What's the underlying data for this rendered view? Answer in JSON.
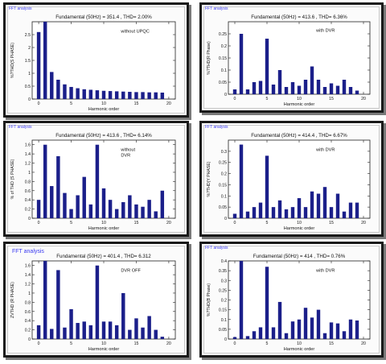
{
  "colors": {
    "bar": "#1b1f8a",
    "axis": "#222222",
    "window_title": "#3a3af0"
  },
  "window_title": "FFT analysis",
  "xlabel": "Harmonic order",
  "chart_data": [
    {
      "type": "bar",
      "window_title": "FFT analysis",
      "title": "Fundamental (50Hz) = 351.4 , THD= 2.00%",
      "annotation": "without UPQC",
      "ylabel": "%?THD(S PHASE)",
      "xlabel": "Harmonic order",
      "ylim": [
        0,
        3
      ],
      "yticks": [
        0,
        0.5,
        1,
        1.5,
        2,
        2.5
      ],
      "xlim": [
        -1,
        21
      ],
      "xticks": [
        0,
        5,
        10,
        15,
        20
      ],
      "x": [
        0,
        1,
        2,
        3,
        4,
        5,
        6,
        7,
        8,
        9,
        10,
        11,
        12,
        13,
        14,
        15,
        16,
        17,
        18,
        19
      ],
      "values": [
        2.6,
        3.0,
        1.05,
        0.75,
        0.57,
        0.47,
        0.42,
        0.38,
        0.36,
        0.34,
        0.32,
        0.31,
        0.3,
        0.29,
        0.28,
        0.27,
        0.27,
        0.26,
        0.26,
        0.25
      ]
    },
    {
      "type": "bar",
      "window_title": "FFT analysis",
      "title": "Fundamental (50Hz) = 413.6 , THD= 6.36%",
      "annotation": "with DVR",
      "ylabel": "%?THD(R Phase)",
      "xlabel": "Harmonic order",
      "ylim": [
        0,
        0.3
      ],
      "yticks": [
        0,
        0.05,
        0.1,
        0.15,
        0.2,
        0.25
      ],
      "xlim": [
        -1,
        21
      ],
      "xticks": [
        0,
        5,
        10,
        15,
        20
      ],
      "x": [
        0,
        1,
        2,
        3,
        4,
        5,
        6,
        7,
        8,
        9,
        10,
        11,
        12,
        13,
        14,
        15,
        16,
        17,
        18,
        19
      ],
      "values": [
        0.02,
        0.25,
        0.02,
        0.05,
        0.055,
        0.23,
        0.04,
        0.1,
        0.03,
        0.05,
        0.035,
        0.06,
        0.115,
        0.06,
        0.03,
        0.045,
        0.035,
        0.06,
        0.03,
        0.015
      ]
    },
    {
      "type": "bar",
      "window_title": "FFT analysis",
      "title": "Fundamental (50Hz) = 413.6 , THD= 6.14%",
      "annotation": "without\nDVR",
      "ylabel": "% of THD (S PHASE)",
      "xlabel": "Harmonic order",
      "ylim": [
        0,
        1.7
      ],
      "yticks": [
        0,
        0.2,
        0.4,
        0.6,
        0.8,
        1,
        1.2,
        1.4,
        1.6
      ],
      "xlim": [
        -1,
        21
      ],
      "xticks": [
        0,
        5,
        10,
        15,
        20
      ],
      "x": [
        0,
        1,
        2,
        3,
        4,
        5,
        6,
        7,
        8,
        9,
        10,
        11,
        12,
        13,
        14,
        15,
        16,
        17,
        18,
        19
      ],
      "values": [
        0.4,
        1.6,
        0.7,
        1.35,
        0.55,
        0.2,
        0.5,
        0.9,
        0.3,
        1.6,
        0.65,
        0.4,
        0.2,
        0.35,
        0.5,
        0.3,
        0.25,
        0.4,
        0.15,
        0.6
      ]
    },
    {
      "type": "bar",
      "window_title": "FFT analysis",
      "title": "Fundamental (50Hz) = 414.4 , THD= 6.67%",
      "annotation": "with DVR",
      "ylabel": "%?THD(Y PHASE)",
      "xlabel": "Harmonic order",
      "ylim": [
        0,
        0.35
      ],
      "yticks": [
        0,
        0.05,
        0.1,
        0.15,
        0.2,
        0.25,
        0.3
      ],
      "xlim": [
        -1,
        21
      ],
      "xticks": [
        0,
        5,
        10,
        15,
        20
      ],
      "x": [
        0,
        1,
        2,
        3,
        4,
        5,
        6,
        7,
        8,
        9,
        10,
        11,
        12,
        13,
        14,
        15,
        16,
        17,
        18,
        19
      ],
      "values": [
        0.02,
        0.33,
        0.03,
        0.05,
        0.07,
        0.28,
        0.05,
        0.08,
        0.04,
        0.05,
        0.09,
        0.05,
        0.12,
        0.11,
        0.14,
        0.05,
        0.11,
        0.03,
        0.07,
        0.07
      ]
    },
    {
      "type": "bar",
      "window_title": "FFT analysis",
      "title": "Fundamental (50Hz) = 401.4 , THD= 6.312",
      "annotation": "DVR OFF",
      "ylabel": "ZVTHD (R PHASE)",
      "xlabel": "Harmonic order",
      "ylim": [
        0,
        1.7
      ],
      "yticks": [
        0,
        0.2,
        0.4,
        0.6,
        0.8,
        1,
        1.2,
        1.4,
        1.6
      ],
      "xlim": [
        -1,
        21
      ],
      "xticks": [
        0,
        5,
        10,
        15,
        20
      ],
      "x": [
        0,
        1,
        2,
        3,
        4,
        5,
        6,
        7,
        8,
        9,
        10,
        11,
        12,
        13,
        14,
        15,
        16,
        17,
        18,
        19
      ],
      "values": [
        0.3,
        1.7,
        0.22,
        1.5,
        0.25,
        0.65,
        0.35,
        0.38,
        0.3,
        1.6,
        0.38,
        0.38,
        0.3,
        1.0,
        0.2,
        0.45,
        0.25,
        0.5,
        0.2,
        0.05
      ]
    },
    {
      "type": "bar",
      "window_title": "FFT analysis",
      "title": "Fundamental (50Hz) = 414 , THD= 0.76%",
      "annotation": "with DVR",
      "ylabel": "%?THD(B Phase)",
      "xlabel": "Harmonic order",
      "ylim": [
        0,
        0.4
      ],
      "yticks": [
        0,
        0.05,
        0.1,
        0.15,
        0.2,
        0.25,
        0.3,
        0.35,
        0.4
      ],
      "xlim": [
        -1,
        21
      ],
      "xticks": [
        0,
        5,
        10,
        15,
        20
      ],
      "x": [
        0,
        1,
        2,
        3,
        4,
        5,
        6,
        7,
        8,
        9,
        10,
        11,
        12,
        13,
        14,
        15,
        16,
        17,
        18,
        19
      ],
      "values": [
        0.01,
        0.4,
        0.015,
        0.04,
        0.06,
        0.37,
        0.06,
        0.19,
        0.03,
        0.09,
        0.1,
        0.16,
        0.11,
        0.15,
        0.03,
        0.085,
        0.08,
        0.04,
        0.1,
        0.095
      ]
    }
  ]
}
